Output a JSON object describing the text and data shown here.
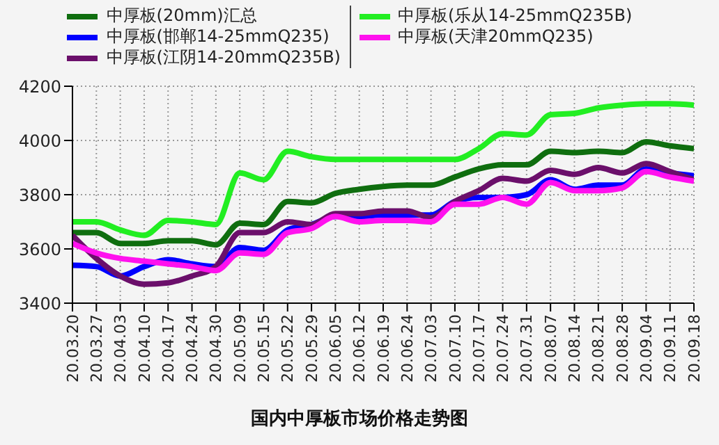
{
  "chart_data": {
    "type": "line",
    "title": "国内中厚板市场价格走势图",
    "categories": [
      "20.03.20",
      "20.03.27",
      "20.04.03",
      "20.04.10",
      "20.04.17",
      "20.04.24",
      "20.04.30",
      "20.05.09",
      "20.05.15",
      "20.05.22",
      "20.05.29",
      "20.06.05",
      "20.06.12",
      "20.06.19",
      "20.06.24",
      "20.07.03",
      "20.07.10",
      "20.07.17",
      "20.07.24",
      "20.07.31",
      "20.08.07",
      "20.08.14",
      "20.08.21",
      "20.08.28",
      "20.09.04",
      "20.09.11",
      "20.09.18"
    ],
    "series": [
      {
        "name": "中厚板(20mm)汇总",
        "color": "#0f6e0f",
        "values": [
          3660,
          3660,
          3620,
          3620,
          3630,
          3630,
          3615,
          3695,
          3690,
          3775,
          3770,
          3805,
          3820,
          3830,
          3835,
          3835,
          3865,
          3895,
          3910,
          3910,
          3960,
          3955,
          3960,
          3955,
          3995,
          3980,
          3970
        ]
      },
      {
        "name": "中厚板(邯郸14-25mmQ235)",
        "color": "#0000ff",
        "values": [
          3540,
          3535,
          3500,
          3535,
          3560,
          3545,
          3535,
          3605,
          3595,
          3670,
          3690,
          3720,
          3720,
          3725,
          3725,
          3725,
          3775,
          3790,
          3790,
          3800,
          3855,
          3820,
          3835,
          3835,
          3895,
          3880,
          3870
        ]
      },
      {
        "name": "中厚板(江阴14-20mmQ235B)",
        "color": "#6b0f6b",
        "values": [
          3650,
          3565,
          3500,
          3470,
          3475,
          3500,
          3535,
          3660,
          3660,
          3700,
          3690,
          3730,
          3730,
          3740,
          3740,
          3715,
          3775,
          3815,
          3860,
          3850,
          3890,
          3875,
          3900,
          3880,
          3915,
          3885,
          3855
        ]
      },
      {
        "name": "中厚板(乐从14-25mmQ235B)",
        "color": "#22ee22",
        "values": [
          3700,
          3700,
          3670,
          3650,
          3705,
          3700,
          3690,
          3880,
          3855,
          3960,
          3940,
          3930,
          3930,
          3930,
          3930,
          3930,
          3930,
          3970,
          4025,
          4020,
          4095,
          4100,
          4120,
          4130,
          4135,
          4135,
          4130
        ]
      },
      {
        "name": "中厚板(天津20mmQ235)",
        "color": "#ff11ee",
        "values": [
          3620,
          3585,
          3565,
          3555,
          3545,
          3535,
          3520,
          3585,
          3580,
          3660,
          3675,
          3720,
          3700,
          3705,
          3705,
          3700,
          3765,
          3765,
          3790,
          3765,
          3845,
          3815,
          3815,
          3825,
          3885,
          3865,
          3850
        ]
      }
    ],
    "ylim": [
      3400,
      4200
    ],
    "yticks": [
      3400,
      3600,
      3800,
      4000,
      4200
    ],
    "grid": true,
    "legend": "top",
    "marker": "none",
    "line_style": "solid"
  }
}
